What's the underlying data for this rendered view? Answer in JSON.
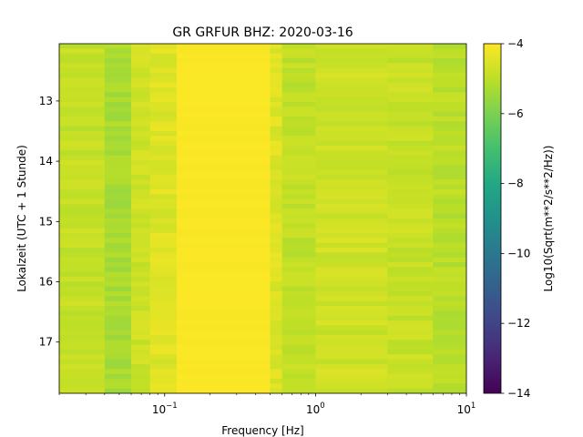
{
  "chart_data": {
    "type": "heatmap",
    "title": "GR GRFUR  BHZ: 2020-03-16",
    "xlabel": "Frequency [Hz]",
    "ylabel": "Lokalzeit (UTC + 1 Stunde)",
    "colorbar_label": "Log10(Sqrt(m**2/s**2/Hz))",
    "x_scale": "log",
    "xlim": [
      0.02,
      10
    ],
    "ylim": [
      12.05,
      17.85
    ],
    "y_inverted": true,
    "x_ticks": [
      {
        "value": 0.1,
        "base": "10",
        "exp": "−1"
      },
      {
        "value": 1,
        "base": "10",
        "exp": "0"
      },
      {
        "value": 10,
        "base": "10",
        "exp": "1"
      }
    ],
    "y_ticks": [
      "13",
      "14",
      "15",
      "16",
      "17"
    ],
    "color_range": [
      -14,
      -4
    ],
    "colorbar_ticks": [
      "−4",
      "−6",
      "−8",
      "−10",
      "−12",
      "−14"
    ],
    "colormap": "viridis",
    "frequency_bands": [
      {
        "from": 0.02,
        "to": 0.04,
        "value": -4.9
      },
      {
        "from": 0.04,
        "to": 0.06,
        "value": -5.3
      },
      {
        "from": 0.06,
        "to": 0.08,
        "value": -4.75
      },
      {
        "from": 0.08,
        "to": 0.12,
        "value": -4.5
      },
      {
        "from": 0.12,
        "to": 0.5,
        "value": -4.05
      },
      {
        "from": 0.5,
        "to": 0.6,
        "value": -4.5
      },
      {
        "from": 0.6,
        "to": 1.0,
        "value": -4.95
      },
      {
        "from": 1.0,
        "to": 3.0,
        "value": -4.75
      },
      {
        "from": 3.0,
        "to": 6.0,
        "value": -4.85
      },
      {
        "from": 6.0,
        "to": 10.0,
        "value": -5.05
      }
    ],
    "colors": {
      "viridis_low": "#440154",
      "viridis_high": "#fde725"
    }
  }
}
